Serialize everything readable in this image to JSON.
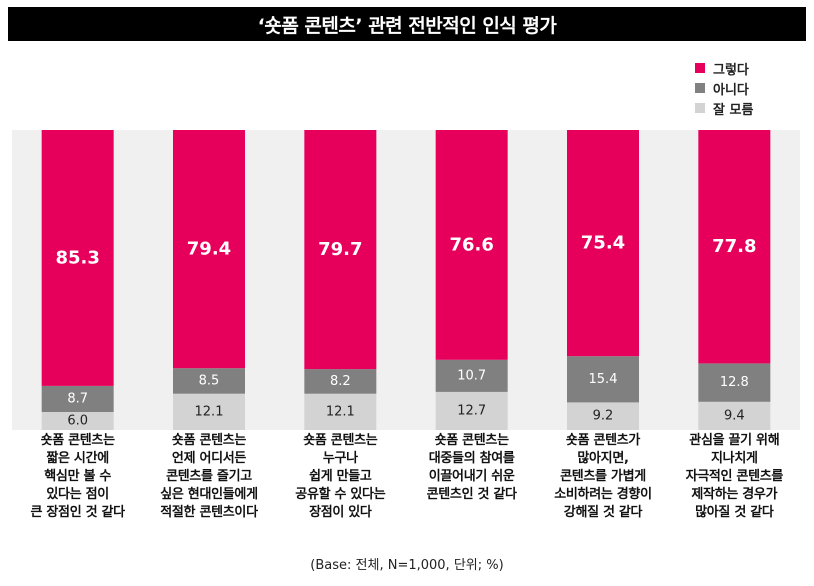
{
  "title": "‘숏폼 콘텐츠’ 관련 전반적인 인식 평가",
  "footnote": "(Base: 전체, N=1,000, 단위; %)",
  "colors": {
    "yes": "#e6005c",
    "no": "#808080",
    "unknown": "#d3d3d3",
    "plot_bg": "#f0f0f0"
  },
  "chart_data": {
    "type": "bar",
    "stacked": true,
    "orientation": "vertical",
    "ylim": [
      0,
      100
    ],
    "legend_position": "top-right",
    "categories": [
      "숏폼 콘텐츠는\n짧은 시간에\n핵심만 볼 수\n있다는 점이\n큰 장점인 것 같다",
      "숏폼 콘텐츠는\n언제 어디서든\n콘텐츠를 즐기고\n싶은 현대인들에게\n적절한 콘텐츠이다",
      "숏폼 콘텐츠는\n누구나\n쉽게 만들고\n공유할 수 있다는\n장점이 있다",
      "숏폼 콘텐츠는\n대중들의 참여를\n이끌어내기 쉬운\n콘텐츠인 것 같다",
      "숏폼 콘텐츠가\n많아지면,\n콘텐츠를 가볍게\n소비하려는 경향이\n강해질 것 같다",
      "관심을 끌기 위해\n지나치게\n자극적인 콘텐츠를\n제작하는 경우가\n많아질 것 같다"
    ],
    "series": [
      {
        "name": "그렇다",
        "values": [
          85.3,
          79.4,
          79.7,
          76.6,
          75.4,
          77.8
        ],
        "labels": [
          "85.3",
          "79.4",
          "79.7",
          "76.6",
          "75.4",
          "77.8"
        ]
      },
      {
        "name": "아니다",
        "values": [
          8.7,
          8.5,
          8.2,
          10.7,
          15.4,
          12.8
        ],
        "labels": [
          "8.7",
          "8.5",
          "8.2",
          "10.7",
          "15.4",
          "12.8"
        ]
      },
      {
        "name": "잘 모름",
        "values": [
          6.0,
          12.1,
          12.1,
          12.7,
          9.2,
          9.4
        ],
        "labels": [
          "6.0",
          "12.1",
          "12.1",
          "12.7",
          "9.2",
          "9.4"
        ]
      }
    ]
  }
}
